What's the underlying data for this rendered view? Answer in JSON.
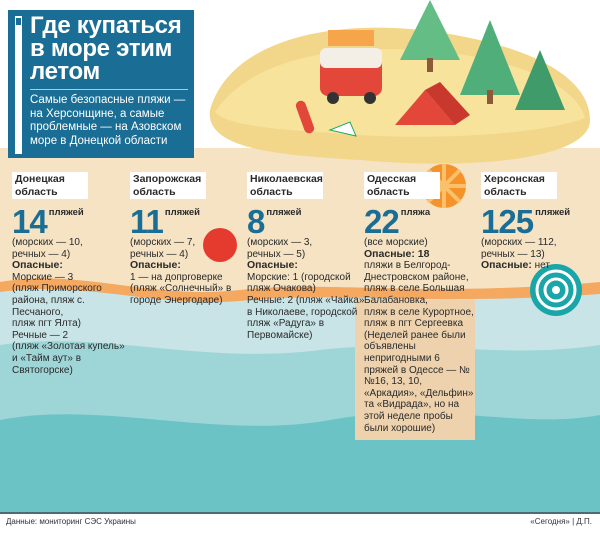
{
  "title": "Где купаться в море этим летом",
  "subtitle": "Самые безопасные пляжи — на Херсонщине, а самые проблемные — на Азовском море в Донецкой области",
  "regions": [
    {
      "name": "Донецкая область",
      "count": "14",
      "unit": "пляжей",
      "breakdown": "(морских — 10,\nречных — 4)",
      "dangerous_label": "Опасные:",
      "dangerous": "Морские — 3\n(пляж Приморского района, пляж с. Песчаного,\nпляж пгт Ялта)\nРечные — 2\n(пляж «Золотая купель» и «Тайм аут» в Святогорске)"
    },
    {
      "name": "Запорожская область",
      "count": "11",
      "unit": "пляжей",
      "breakdown": "(морских — 7,\nречных — 4)",
      "dangerous_label": "Опасные:",
      "dangerous": "1 — на допproверке\n(пляж «Солнечный» в городе Энергодаре)"
    },
    {
      "name": "Николаевская область",
      "count": "8",
      "unit": "пляжей",
      "breakdown": "(морских — 3,\nречных — 5)",
      "dangerous_label": "Опасные:",
      "dangerous": "Морские: 1 (городской пляж Очакова)\nРечные: 2 (пляж «Чайка» в Николаеве, городской пляж «Радуга» в Первомайске)"
    },
    {
      "name": "Одесская область",
      "count": "22",
      "unit": "пляжа",
      "breakdown": "(все морские)",
      "dangerous_label": "Опасные: 18",
      "dangerous": "пляжи в Белгород-Днестровском районе, пляж в селе Большая Балабановка,\nпляж в селе Курортное, пляж в пгт Сергеевка (Неделей ранее были объявлены непригодными 6 пряжей в Одессе — №№16, 13, 10, «Аркадия», «Дельфин» та «Видрада», но на этой неделе пробы были хорошие)"
    },
    {
      "name": "Херсонская область",
      "count": "125",
      "unit": "пляжей",
      "breakdown": "(морских — 112,\nречных — 13)",
      "dangerous_label": "Опасные:",
      "dangerous": "нет"
    }
  ],
  "footer": {
    "source": "Данные: мониторинг СЭС Украины",
    "credit": "«Сегодня» | Д.П."
  },
  "colors": {
    "accent": "#1a6e95",
    "sand": "#f5e3c4",
    "stripe": "#f4a860",
    "water": "#6cc3c6"
  }
}
